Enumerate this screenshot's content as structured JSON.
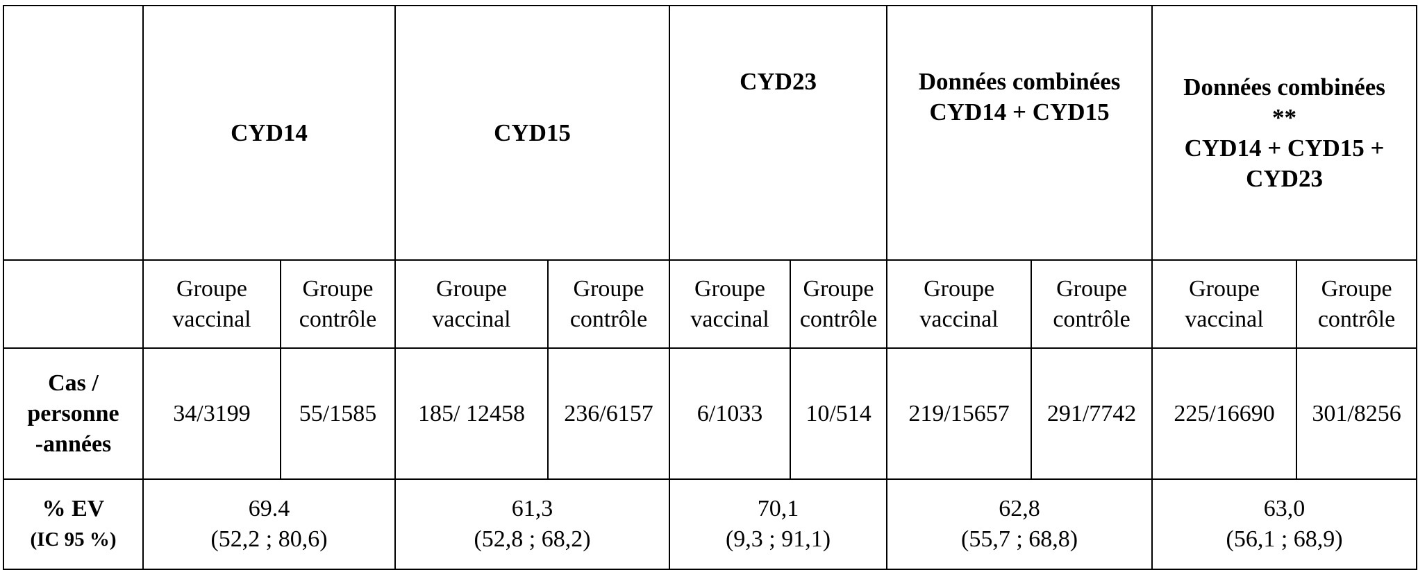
{
  "table": {
    "headers": [
      {
        "lines": [
          "CYD14"
        ]
      },
      {
        "lines": [
          "CYD15"
        ]
      },
      {
        "lines": [
          "CYD23"
        ]
      },
      {
        "lines": [
          "Données combinées",
          "CYD14 + CYD15"
        ]
      },
      {
        "lines": [
          "Données combinées",
          "**",
          "CYD14 + CYD15 +",
          "CYD23"
        ]
      }
    ],
    "subheaders": [
      {
        "line1": "Groupe",
        "line2": "vaccinal"
      },
      {
        "line1": "Groupe",
        "line2": "contrôle"
      },
      {
        "line1": "Groupe",
        "line2": "vaccinal"
      },
      {
        "line1": "Groupe",
        "line2": "contrôle"
      },
      {
        "line1": "Groupe",
        "line2": "vaccinal"
      },
      {
        "line1": "Groupe",
        "line2": "contrôle"
      },
      {
        "line1": "Groupe",
        "line2": "vaccinal"
      },
      {
        "line1": "Groupe",
        "line2": "contrôle"
      },
      {
        "line1": "Groupe",
        "line2": "vaccinal"
      },
      {
        "line1": "Groupe",
        "line2": "contrôle"
      }
    ],
    "rows": {
      "cases": {
        "label_lines": [
          "Cas /",
          "personne",
          "-années"
        ],
        "values": [
          "34/3199",
          "55/1585",
          "185/ 12458",
          "236/6157",
          "6/1033",
          "10/514",
          "219/15657",
          "291/7742",
          "225/16690",
          "301/8256"
        ]
      },
      "efficacy": {
        "label_line1": "% EV",
        "label_line2": "(IC 95 %)",
        "values": [
          {
            "value": "69.4",
            "ci": "(52,2 ; 80,6)"
          },
          {
            "value": "61,3",
            "ci": "(52,8 ; 68,2)"
          },
          {
            "value": "70,1",
            "ci": "(9,3 ; 91,1)"
          },
          {
            "value": "62,8",
            "ci": "(55,7 ; 68,8)"
          },
          {
            "value": "63,0",
            "ci": "(56,1 ; 68,9)"
          }
        ]
      }
    }
  }
}
